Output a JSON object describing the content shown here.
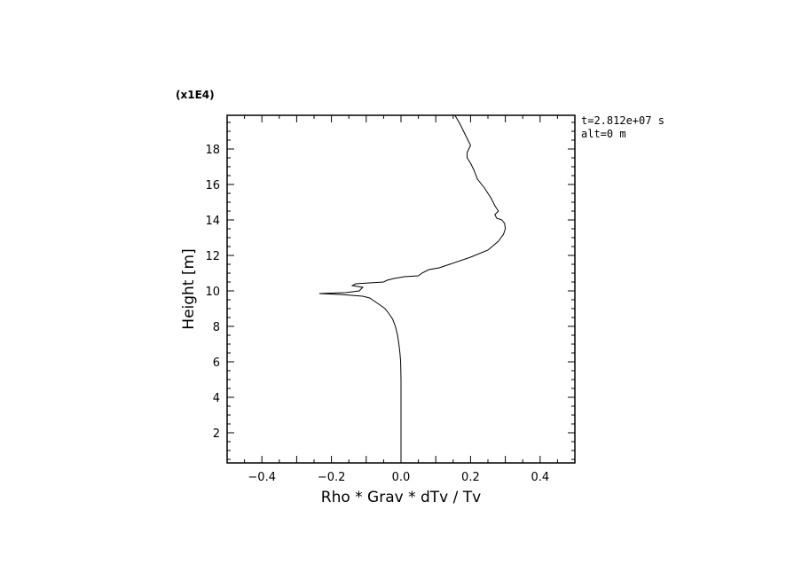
{
  "chart_data": {
    "type": "line",
    "xlabel": "Rho * Grav * dTv / Tv",
    "ylabel": "Height [m]",
    "y_multiplier": "(x1E4)",
    "annotations": [
      "t=2.812e+07 s",
      "alt=0 m"
    ],
    "xlim": [
      -0.5,
      0.5
    ],
    "ylim": [
      0.3,
      19.9
    ],
    "x_ticks": [
      -0.4,
      -0.2,
      0.0,
      0.2,
      0.4
    ],
    "x_tick_labels": [
      "−0.4",
      "−0.2",
      "0.0",
      "0.2",
      "0.4"
    ],
    "y_ticks": [
      2,
      4,
      6,
      8,
      10,
      12,
      14,
      16,
      18
    ],
    "y_tick_labels": [
      "2",
      "4",
      "6",
      "8",
      "10",
      "12",
      "14",
      "16",
      "18"
    ],
    "grid": false,
    "series": [
      {
        "x": [
          0.0,
          0.0,
          0.0,
          -0.001,
          -0.003,
          -0.006,
          -0.01,
          -0.016,
          -0.024,
          -0.034,
          -0.046,
          -0.06,
          -0.075,
          -0.09,
          -0.11,
          -0.175,
          -0.235,
          -0.16,
          -0.12,
          -0.11,
          -0.14,
          -0.13,
          -0.09,
          -0.05,
          -0.04,
          -0.02,
          0.01,
          0.05,
          0.06,
          0.08,
          0.11,
          0.14,
          0.2,
          0.25,
          0.28,
          0.295,
          0.3,
          0.298,
          0.29,
          0.275,
          0.27,
          0.28,
          0.27,
          0.26,
          0.24,
          0.22,
          0.21,
          0.2,
          0.19,
          0.19,
          0.2,
          0.185,
          0.17,
          0.155
        ],
        "y": [
          0.3,
          3.0,
          5.0,
          6.0,
          6.5,
          7.0,
          7.5,
          8.0,
          8.4,
          8.7,
          9.0,
          9.2,
          9.4,
          9.6,
          9.7,
          9.8,
          9.85,
          9.9,
          10.0,
          10.2,
          10.3,
          10.4,
          10.45,
          10.5,
          10.6,
          10.7,
          10.8,
          10.85,
          11.0,
          11.2,
          11.3,
          11.5,
          11.9,
          12.3,
          12.8,
          13.2,
          13.5,
          13.8,
          14.0,
          14.1,
          14.3,
          14.5,
          14.8,
          15.2,
          15.8,
          16.3,
          16.8,
          17.2,
          17.5,
          17.8,
          18.2,
          18.8,
          19.4,
          19.9
        ]
      }
    ]
  }
}
